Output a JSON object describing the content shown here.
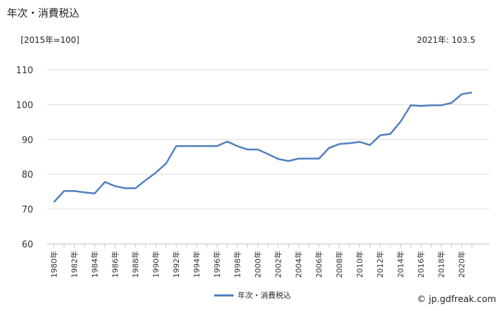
{
  "header": {
    "title": "年次・消費税込",
    "unit": "[2015年=100]",
    "latest_label": "2021年:",
    "latest_value": "103.5"
  },
  "footer": {
    "credit": "© jp.gdfreak.com"
  },
  "colors": {
    "line": "#4f7fbf",
    "grid": "#d9d9d9"
  },
  "chart_data": {
    "type": "line",
    "title": "年次・消費税込",
    "ylim": [
      60,
      110
    ],
    "yticks": [
      60,
      70,
      80,
      90,
      100,
      110
    ],
    "x": [
      1980,
      1981,
      1982,
      1983,
      1984,
      1985,
      1986,
      1987,
      1988,
      1989,
      1990,
      1991,
      1992,
      1993,
      1994,
      1995,
      1996,
      1997,
      1998,
      1999,
      2000,
      2001,
      2002,
      2003,
      2004,
      2005,
      2006,
      2007,
      2008,
      2009,
      2010,
      2011,
      2012,
      2013,
      2014,
      2015,
      2016,
      2017,
      2018,
      2019,
      2020,
      2021
    ],
    "xtick_labels": [
      "1980年",
      "1982年",
      "1984年",
      "1986年",
      "1988年",
      "1990年",
      "1992年",
      "1994年",
      "1996年",
      "1998年",
      "2000年",
      "2002年",
      "2004年",
      "2006年",
      "2008年",
      "2010年",
      "2012年",
      "2014年",
      "2016年",
      "2018年",
      "2020年"
    ],
    "series": [
      {
        "name": "年次・消費税込",
        "values": [
          72.0,
          75.2,
          75.2,
          74.8,
          74.5,
          77.8,
          76.6,
          76.0,
          76.0,
          78.3,
          80.5,
          83.1,
          88.1,
          88.1,
          88.1,
          88.1,
          88.1,
          89.4,
          88.1,
          87.1,
          87.1,
          85.8,
          84.4,
          83.8,
          84.5,
          84.5,
          84.5,
          87.6,
          88.7,
          88.9,
          89.3,
          88.4,
          91.2,
          91.6,
          95.1,
          99.8,
          99.6,
          99.8,
          99.8,
          100.5,
          103.0,
          103.5
        ]
      }
    ],
    "legend": "bottom-center",
    "grid": true
  }
}
